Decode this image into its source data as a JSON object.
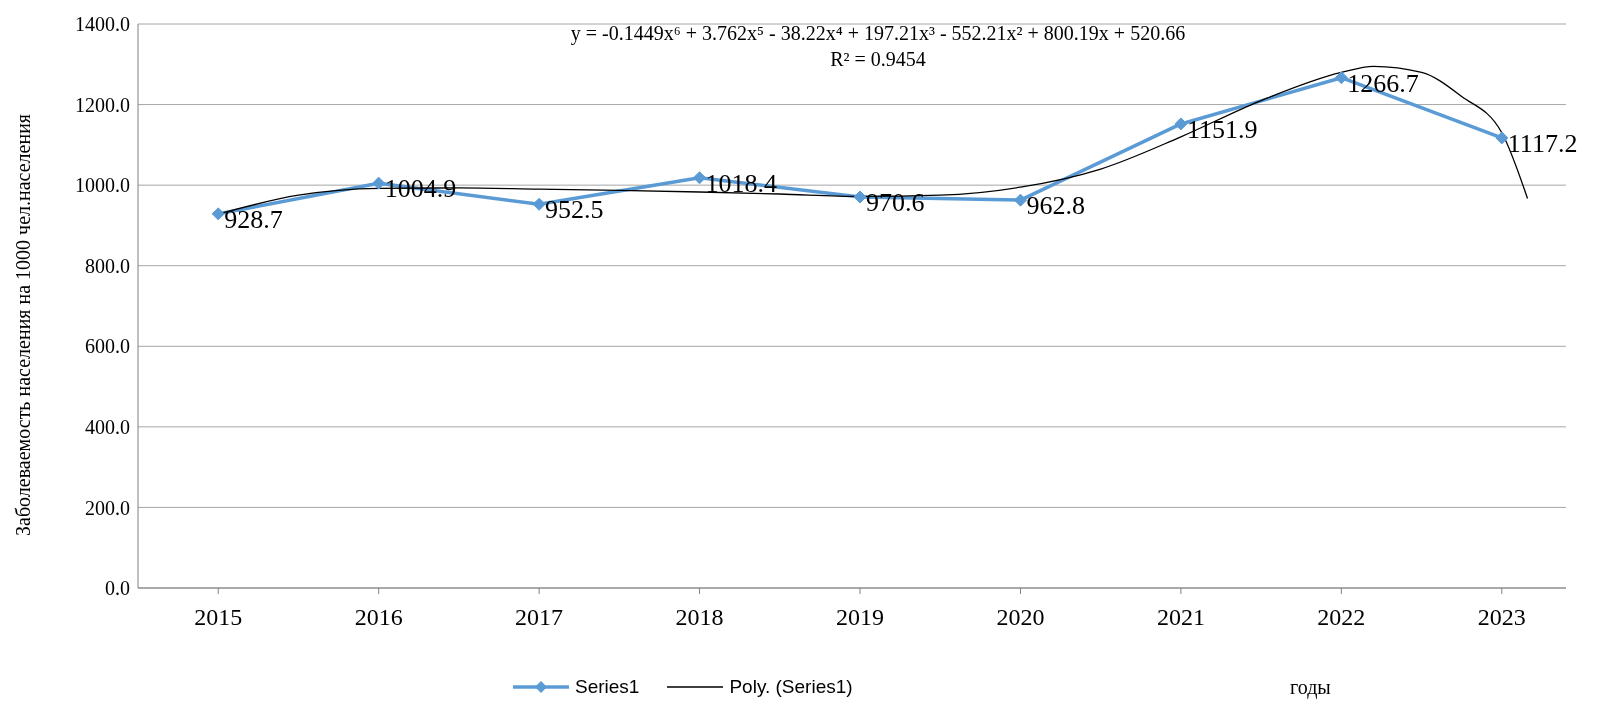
{
  "chart_data": {
    "type": "line",
    "xlabel": "годы",
    "ylabel": "Заболеваемость  населения на 1000 чел.населения",
    "annotations": [
      "y = -0.1449x⁶ + 3.762x⁵ - 38.22x⁴ + 197.21x³ - 552.21x² + 800.19x + 520.66",
      "R² = 0.9454"
    ],
    "xlim": [
      2014.5,
      2023.4
    ],
    "xticks": [
      2015,
      2016,
      2017,
      2018,
      2019,
      2020,
      2021,
      2022,
      2023
    ],
    "ylim": [
      0,
      1400
    ],
    "yticks": [
      {
        "value": 0,
        "label": "0.0"
      },
      {
        "value": 200,
        "label": "200.0"
      },
      {
        "value": 400,
        "label": "400.0"
      },
      {
        "value": 600,
        "label": "600.0"
      },
      {
        "value": 800,
        "label": "800.0"
      },
      {
        "value": 1000,
        "label": "1000.0"
      },
      {
        "value": 1200,
        "label": "1200.0"
      },
      {
        "value": 1400,
        "label": "1400.0"
      }
    ],
    "grid": "y",
    "legend": "bottom",
    "series": [
      {
        "name": "Series1",
        "color": "#5b9bd5",
        "marker": "diamond",
        "x": [
          2015,
          2016,
          2017,
          2018,
          2019,
          2020,
          2021,
          2022,
          2023
        ],
        "values": [
          928.7,
          1004.9,
          952.5,
          1018.4,
          970.6,
          962.8,
          1151.9,
          1266.7,
          1117.2
        ],
        "value_labels": [
          "928.7",
          "1004.9",
          "952.5",
          "1018.4",
          "970.6",
          "962.8",
          "1151.9",
          "1266.7",
          "1117.2"
        ]
      },
      {
        "name": "Poly. (Series1)",
        "type": "line",
        "color": "#000000",
        "marker": "none",
        "x": [
          2015,
          2015.5,
          2016,
          2016.5,
          2017,
          2017.5,
          2018,
          2018.5,
          2019,
          2019.5,
          2020,
          2020.5,
          2021,
          2021.5,
          2022,
          2022.2,
          2022.5,
          2022.75,
          2023,
          2023.16
        ],
        "values": [
          928,
          975,
          992,
          993,
          990,
          987,
          983,
          978,
          972,
          975,
          995,
          1040,
          1120,
          1210,
          1280,
          1295,
          1280,
          1220,
          1130,
          967
        ]
      }
    ]
  }
}
